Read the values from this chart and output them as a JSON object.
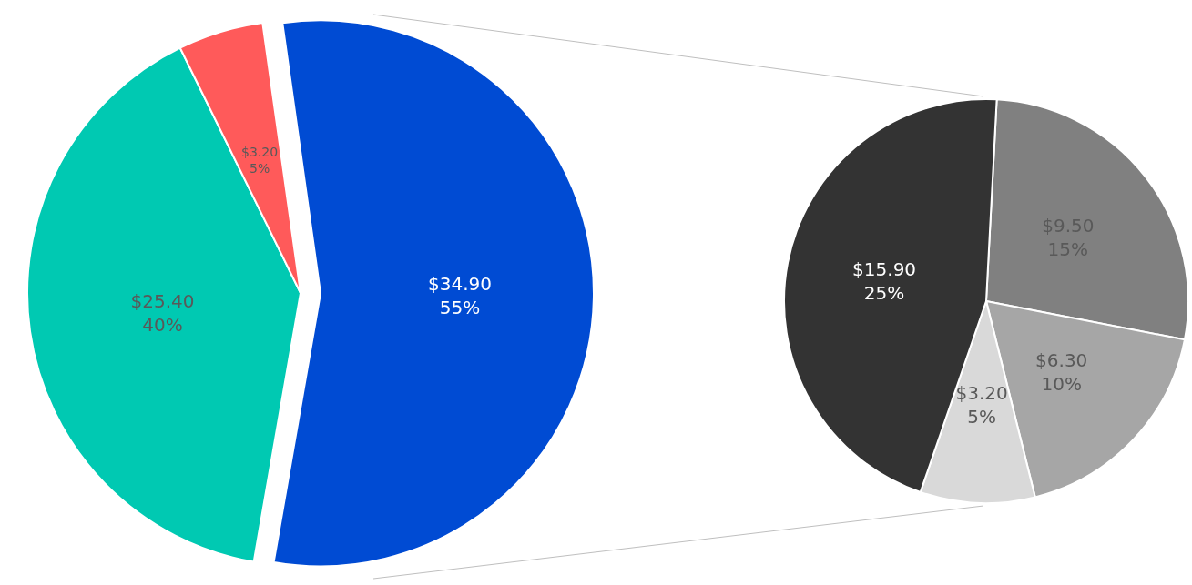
{
  "chart_data": [
    {
      "type": "pie",
      "categories": [
        null,
        null,
        null
      ],
      "values": [
        34.9,
        25.4,
        3.2
      ],
      "colors": [
        "#004bd3",
        "#00c9b2",
        "#ff5a5a"
      ],
      "value_labels": [
        "$34.90\n55%",
        "$25.40\n40%",
        "$3.20\n5%"
      ]
    },
    {
      "type": "pie",
      "categories": [
        null,
        null,
        null,
        null
      ],
      "values": [
        9.5,
        6.3,
        3.2,
        15.9
      ],
      "colors": [
        "#808080",
        "#a6a6a6",
        "#d9d9d9",
        "#333333"
      ],
      "value_labels": [
        "$9.50\n15%",
        "$6.30\n10%",
        "$3.20\n5%",
        "$15.90\n25%"
      ]
    }
  ]
}
